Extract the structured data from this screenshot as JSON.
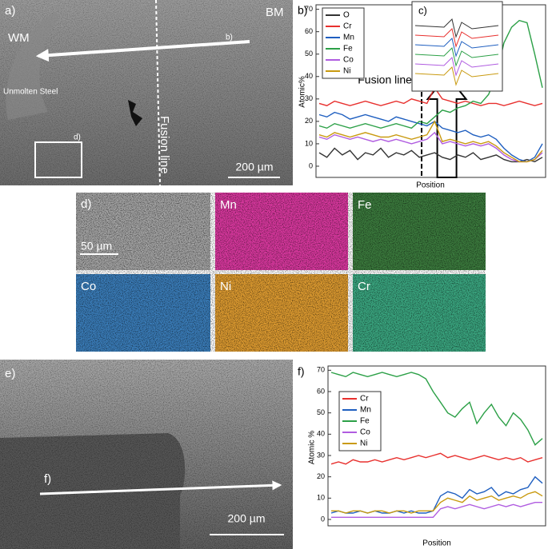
{
  "figure": {
    "a": {
      "label": "a)",
      "wm": "WM",
      "bm": "BM",
      "unmolten": "Unmolten Steel",
      "arrow_label": "b)",
      "box_label": "d)",
      "fusion": "Fusion line",
      "scale": "200 µm"
    },
    "d": {
      "label": "d)",
      "scale": "50 µm",
      "maps": [
        "Mn",
        "Fe",
        "Co",
        "Ni",
        "Cr"
      ]
    },
    "e": {
      "label": "e)",
      "arrow_label": "f)",
      "scale": "200 µm"
    }
  },
  "chart_data": [
    {
      "type": "line",
      "panel_label": "b)",
      "inset_label": "c)",
      "annotation": "Fusion line",
      "ylabel": "Atomic%",
      "xlabel": "Position",
      "legend": "upper left",
      "ylim": [
        -5,
        72
      ],
      "yticks": [
        0,
        10,
        20,
        30,
        40,
        50,
        60,
        70
      ],
      "categories": [
        null,
        null,
        null,
        null,
        null,
        null,
        null,
        null,
        null,
        null,
        null,
        null,
        null,
        null,
        null,
        null,
        null,
        null,
        null,
        null,
        null,
        null,
        null,
        null,
        null,
        null,
        null,
        null,
        null,
        null
      ],
      "series": [
        {
          "name": "O",
          "color": "#333333",
          "values": [
            6,
            4,
            8,
            5,
            7,
            3,
            6,
            5,
            8,
            4,
            6,
            5,
            7,
            4,
            5,
            6,
            4,
            3,
            5,
            4,
            6,
            3,
            4,
            5,
            3,
            2,
            2,
            3,
            2,
            4
          ]
        },
        {
          "name": "Cr",
          "color": "#e8302e",
          "values": [
            28,
            27,
            29,
            28,
            27,
            28,
            29,
            28,
            27,
            28,
            29,
            28,
            30,
            29,
            28,
            35,
            30,
            29,
            28,
            29,
            28,
            27,
            28,
            28,
            27,
            28,
            29,
            28,
            27,
            28
          ]
        },
        {
          "name": "Mn",
          "color": "#1f5fc0",
          "values": [
            23,
            22,
            24,
            23,
            21,
            22,
            23,
            22,
            21,
            20,
            22,
            21,
            20,
            19,
            18,
            20,
            17,
            16,
            15,
            16,
            14,
            13,
            14,
            12,
            8,
            5,
            3,
            2,
            4,
            10
          ]
        },
        {
          "name": "Fe",
          "color": "#2ca047",
          "values": [
            18,
            17,
            19,
            18,
            17,
            18,
            19,
            18,
            17,
            18,
            19,
            18,
            17,
            20,
            19,
            22,
            25,
            24,
            26,
            27,
            29,
            28,
            32,
            40,
            55,
            62,
            65,
            64,
            50,
            35
          ]
        },
        {
          "name": "Co",
          "color": "#b05ce0",
          "values": [
            13,
            12,
            14,
            13,
            12,
            13,
            12,
            11,
            12,
            11,
            12,
            11,
            10,
            11,
            12,
            15,
            10,
            11,
            10,
            9,
            10,
            9,
            10,
            8,
            5,
            3,
            2,
            2,
            3,
            6
          ]
        },
        {
          "name": "Ni",
          "color": "#c99a10",
          "values": [
            14,
            13,
            15,
            14,
            13,
            14,
            15,
            14,
            13,
            13,
            14,
            13,
            12,
            13,
            14,
            20,
            11,
            12,
            11,
            10,
            11,
            10,
            11,
            9,
            6,
            4,
            2,
            2,
            3,
            7
          ]
        }
      ]
    },
    {
      "type": "line",
      "panel_label": "f)",
      "ylabel": "Atomic %",
      "xlabel": "Position",
      "legend": "center left",
      "ylim": [
        -3,
        72
      ],
      "yticks": [
        0,
        10,
        20,
        30,
        40,
        50,
        60,
        70
      ],
      "categories": [
        null,
        null,
        null,
        null,
        null,
        null,
        null,
        null,
        null,
        null,
        null,
        null,
        null,
        null,
        null,
        null,
        null,
        null,
        null,
        null,
        null,
        null,
        null,
        null,
        null,
        null,
        null,
        null,
        null,
        null
      ],
      "series": [
        {
          "name": "Cr",
          "color": "#e8302e",
          "values": [
            26,
            27,
            26,
            28,
            27,
            27,
            28,
            27,
            28,
            29,
            28,
            29,
            30,
            29,
            30,
            31,
            29,
            30,
            29,
            28,
            29,
            30,
            29,
            28,
            29,
            28,
            29,
            27,
            28,
            29
          ]
        },
        {
          "name": "Mn",
          "color": "#1f5fc0",
          "values": [
            3,
            4,
            3,
            3,
            4,
            3,
            4,
            3,
            3,
            4,
            3,
            4,
            3,
            3,
            4,
            11,
            13,
            12,
            10,
            14,
            12,
            13,
            15,
            11,
            13,
            12,
            14,
            15,
            20,
            17
          ]
        },
        {
          "name": "Fe",
          "color": "#2ca047",
          "values": [
            69,
            68,
            67,
            69,
            68,
            67,
            68,
            69,
            68,
            67,
            68,
            69,
            68,
            66,
            60,
            55,
            50,
            48,
            52,
            55,
            45,
            50,
            54,
            48,
            44,
            50,
            47,
            42,
            35,
            38
          ]
        },
        {
          "name": "Co",
          "color": "#b05ce0",
          "values": [
            1,
            1,
            1,
            1,
            1,
            1,
            1,
            1,
            1,
            1,
            1,
            1,
            1,
            1,
            1,
            5,
            6,
            5,
            6,
            7,
            6,
            5,
            6,
            7,
            6,
            7,
            6,
            7,
            8,
            8
          ]
        },
        {
          "name": "Ni",
          "color": "#c99a10",
          "values": [
            4,
            4,
            3,
            4,
            4,
            3,
            4,
            4,
            3,
            4,
            4,
            3,
            4,
            4,
            4,
            8,
            10,
            9,
            8,
            11,
            9,
            10,
            11,
            9,
            10,
            11,
            10,
            12,
            13,
            11
          ]
        }
      ]
    }
  ]
}
